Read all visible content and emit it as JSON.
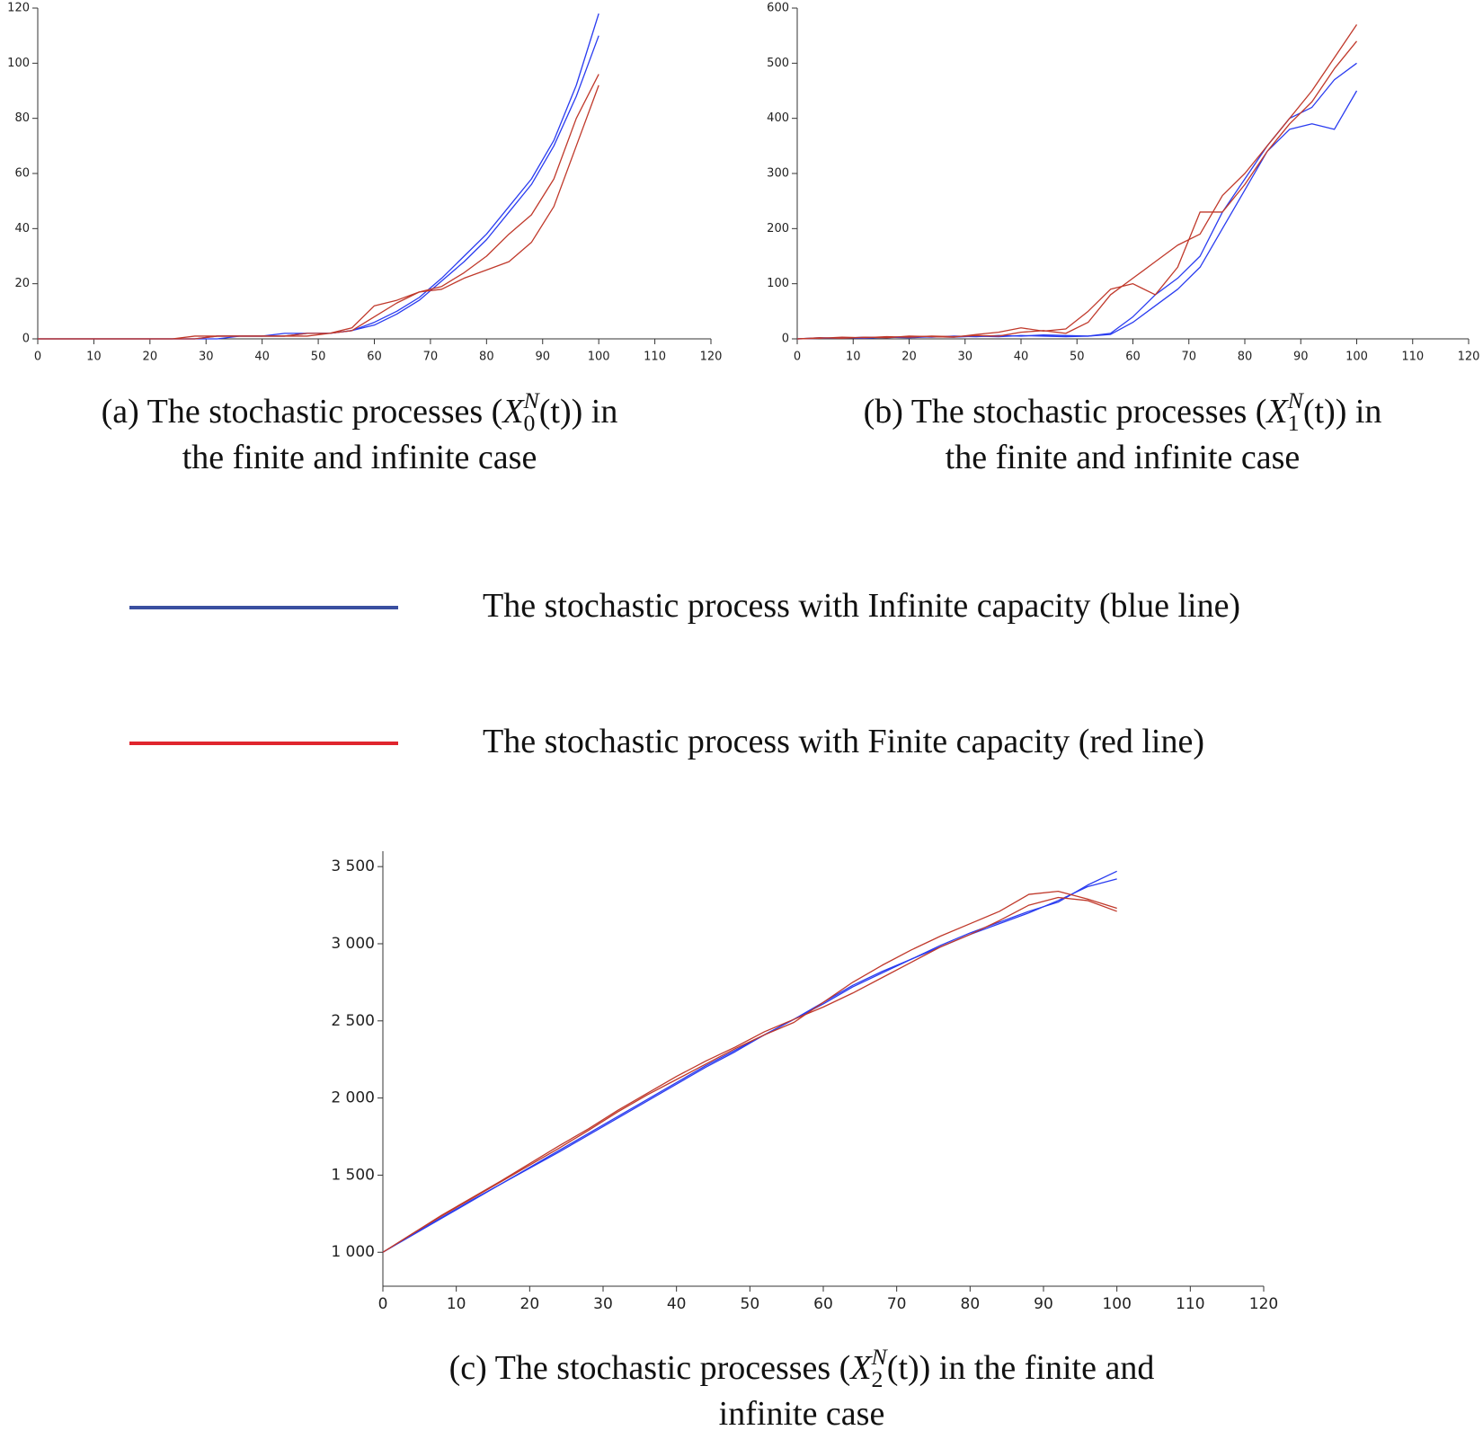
{
  "chart_data": [
    {
      "type": "line",
      "caption": {
        "before": "(a) The stochastic processes (",
        "symbol": "X",
        "superscript": "N",
        "subscript": "0",
        "after": "(t)) in",
        "second_line": "the finite and infinite case"
      },
      "x": [
        0,
        4,
        8,
        12,
        16,
        20,
        24,
        28,
        32,
        36,
        40,
        44,
        48,
        52,
        56,
        60,
        64,
        68,
        72,
        76,
        80,
        84,
        88,
        92,
        96,
        100
      ],
      "xlim": [
        0,
        120
      ],
      "xticks": [
        0,
        10,
        20,
        30,
        40,
        50,
        60,
        70,
        80,
        90,
        100,
        110,
        120
      ],
      "ylim": [
        0,
        120
      ],
      "yticks": [
        0,
        20,
        40,
        60,
        80,
        100,
        120
      ],
      "series": [
        {
          "color": "#2a3cf0",
          "values": [
            0,
            0,
            0,
            0,
            0,
            0,
            0,
            0,
            1,
            1,
            1,
            2,
            2,
            2,
            3,
            6,
            10,
            15,
            22,
            30,
            38,
            48,
            58,
            72,
            92,
            118
          ]
        },
        {
          "color": "#2a3cf0",
          "values": [
            0,
            0,
            0,
            0,
            0,
            0,
            0,
            0,
            0,
            1,
            1,
            1,
            2,
            2,
            3,
            5,
            9,
            14,
            21,
            28,
            36,
            46,
            56,
            70,
            88,
            110
          ]
        },
        {
          "color": "#c0392b",
          "values": [
            0,
            0,
            0,
            0,
            0,
            0,
            0,
            1,
            1,
            1,
            1,
            1,
            2,
            2,
            4,
            12,
            14,
            17,
            19,
            24,
            30,
            38,
            45,
            58,
            80,
            96
          ]
        },
        {
          "color": "#c0392b",
          "values": [
            0,
            0,
            0,
            0,
            0,
            0,
            0,
            0,
            1,
            1,
            1,
            1,
            1,
            2,
            3,
            8,
            13,
            17,
            18,
            22,
            25,
            28,
            35,
            48,
            70,
            92
          ]
        }
      ]
    },
    {
      "type": "line",
      "caption": {
        "before": "(b) The stochastic processes (",
        "symbol": "X",
        "superscript": "N",
        "subscript": "1",
        "after": "(t)) in",
        "second_line": "the finite and infinite case"
      },
      "x": [
        0,
        4,
        8,
        12,
        16,
        20,
        24,
        28,
        32,
        36,
        40,
        44,
        48,
        52,
        56,
        60,
        64,
        68,
        72,
        76,
        80,
        84,
        88,
        92,
        96,
        100
      ],
      "xlim": [
        0,
        120
      ],
      "xticks": [
        0,
        10,
        20,
        30,
        40,
        50,
        60,
        70,
        80,
        90,
        100,
        110,
        120
      ],
      "ylim": [
        0,
        600
      ],
      "yticks": [
        0,
        100,
        200,
        300,
        400,
        500,
        600
      ],
      "series": [
        {
          "color": "#2a3cf0",
          "values": [
            0,
            1,
            2,
            1,
            3,
            2,
            4,
            3,
            5,
            4,
            6,
            5,
            4,
            5,
            8,
            30,
            60,
            90,
            130,
            200,
            270,
            340,
            380,
            390,
            380,
            450
          ]
        },
        {
          "color": "#2a3cf0",
          "values": [
            0,
            2,
            1,
            3,
            2,
            4,
            3,
            5,
            4,
            6,
            5,
            7,
            6,
            5,
            10,
            40,
            80,
            110,
            150,
            230,
            290,
            350,
            400,
            420,
            470,
            500
          ]
        },
        {
          "color": "#c0392b",
          "values": [
            0,
            1,
            3,
            2,
            4,
            3,
            5,
            4,
            6,
            5,
            12,
            15,
            10,
            30,
            80,
            110,
            140,
            170,
            190,
            260,
            300,
            350,
            400,
            450,
            510,
            570
          ]
        },
        {
          "color": "#c0392b",
          "values": [
            0,
            2,
            1,
            3,
            2,
            5,
            4,
            3,
            8,
            12,
            20,
            14,
            18,
            50,
            90,
            100,
            80,
            130,
            230,
            230,
            280,
            340,
            390,
            430,
            490,
            540
          ]
        }
      ]
    },
    {
      "type": "line",
      "caption": {
        "before": "(c) The stochastic processes (",
        "symbol": "X",
        "superscript": "N",
        "subscript": "2",
        "after": "(t)) in the finite and",
        "second_line": "infinite case"
      },
      "x": [
        0,
        4,
        8,
        12,
        16,
        20,
        24,
        28,
        32,
        36,
        40,
        44,
        48,
        52,
        56,
        60,
        64,
        68,
        72,
        76,
        80,
        84,
        88,
        92,
        96,
        100
      ],
      "xlim": [
        0,
        120
      ],
      "xticks": [
        0,
        10,
        20,
        30,
        40,
        50,
        60,
        70,
        80,
        90,
        100,
        110,
        120
      ],
      "ylim": [
        780,
        3600
      ],
      "yticks": [
        {
          "value": 1000,
          "label": "1 000"
        },
        {
          "value": 1500,
          "label": "1 500"
        },
        {
          "value": 2000,
          "label": "2 000"
        },
        {
          "value": 2500,
          "label": "2 500"
        },
        {
          "value": 3000,
          "label": "3 000"
        },
        {
          "value": 3500,
          "label": "3 500"
        }
      ],
      "series": [
        {
          "color": "#2a3cf0",
          "values": [
            1000,
            1115,
            1225,
            1335,
            1440,
            1550,
            1660,
            1770,
            1880,
            1990,
            2100,
            2210,
            2310,
            2410,
            2510,
            2610,
            2720,
            2810,
            2900,
            2990,
            3070,
            3140,
            3210,
            3270,
            3380,
            3470
          ]
        },
        {
          "color": "#2a3cf0",
          "values": [
            1000,
            1110,
            1220,
            1330,
            1440,
            1545,
            1650,
            1760,
            1870,
            1980,
            2090,
            2200,
            2300,
            2410,
            2510,
            2620,
            2730,
            2820,
            2900,
            2980,
            3060,
            3130,
            3200,
            3280,
            3370,
            3420
          ]
        },
        {
          "color": "#c0392b",
          "values": [
            1000,
            1120,
            1240,
            1350,
            1460,
            1575,
            1690,
            1800,
            1920,
            2030,
            2140,
            2240,
            2330,
            2430,
            2510,
            2590,
            2680,
            2780,
            2880,
            2980,
            3060,
            3150,
            3250,
            3300,
            3280,
            3210
          ]
        },
        {
          "color": "#c0392b",
          "values": [
            1000,
            1120,
            1235,
            1345,
            1455,
            1565,
            1675,
            1790,
            1910,
            2020,
            2120,
            2220,
            2320,
            2410,
            2490,
            2620,
            2750,
            2860,
            2960,
            3050,
            3130,
            3210,
            3320,
            3340,
            3290,
            3230
          ]
        }
      ]
    }
  ],
  "legend": [
    {
      "label": "The stochastic process with Infinite capacity (blue line)",
      "color": "#3a4fa0"
    },
    {
      "label": "The stochastic process with Finite capacity (red line)",
      "color": "#e0252d"
    }
  ]
}
